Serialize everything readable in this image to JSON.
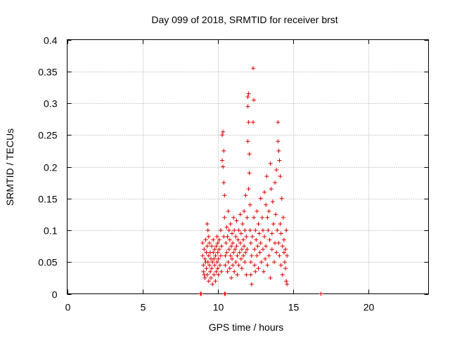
{
  "chart_data": {
    "type": "scatter",
    "title": "Day 099 of 2018, SRMTID for receiver brst",
    "xlabel": "GPS time / hours",
    "ylabel": "SRMTID / TECUs",
    "xlim": [
      0,
      24
    ],
    "ylim": [
      0,
      0.4
    ],
    "grid": true,
    "x_ticks": [
      0,
      5,
      10,
      15,
      20
    ],
    "x_tick_labels": [
      "0",
      "5",
      "10",
      "15",
      "20"
    ],
    "y_ticks": [
      0,
      0.05,
      0.1,
      0.15,
      0.2,
      0.25,
      0.3,
      0.35,
      0.4
    ],
    "y_tick_labels": [
      "0",
      "0.05",
      "0.1",
      "0.15",
      "0.2",
      "0.25",
      "0.3",
      "0.35",
      "0.4"
    ],
    "marker": "plus",
    "color": "#e00000",
    "series": [
      {
        "name": "SRMTID",
        "points": [
          [
            8.85,
            0.0
          ],
          [
            8.9,
            0.0
          ],
          [
            10.45,
            0.0
          ],
          [
            10.5,
            0.0
          ],
          [
            16.85,
            0.0
          ],
          [
            9.0,
            0.08
          ],
          [
            9.0,
            0.06
          ],
          [
            9.05,
            0.045
          ],
          [
            9.05,
            0.035
          ],
          [
            9.1,
            0.07
          ],
          [
            9.1,
            0.03
          ],
          [
            9.15,
            0.055
          ],
          [
            9.15,
            0.025
          ],
          [
            9.2,
            0.085
          ],
          [
            9.2,
            0.05
          ],
          [
            9.25,
            0.04
          ],
          [
            9.25,
            0.065
          ],
          [
            9.3,
            0.11
          ],
          [
            9.3,
            0.075
          ],
          [
            9.3,
            0.03
          ],
          [
            9.35,
            0.1
          ],
          [
            9.35,
            0.05
          ],
          [
            9.4,
            0.09
          ],
          [
            9.4,
            0.06
          ],
          [
            9.4,
            0.02
          ],
          [
            9.45,
            0.045
          ],
          [
            9.45,
            0.08
          ],
          [
            9.5,
            0.035
          ],
          [
            9.5,
            0.065
          ],
          [
            9.55,
            0.025
          ],
          [
            9.55,
            0.055
          ],
          [
            9.6,
            0.075
          ],
          [
            9.6,
            0.04
          ],
          [
            9.65,
            0.015
          ],
          [
            9.65,
            0.05
          ],
          [
            9.7,
            0.065
          ],
          [
            9.7,
            0.085
          ],
          [
            9.75,
            0.03
          ],
          [
            9.75,
            0.055
          ],
          [
            9.8,
            0.045
          ],
          [
            9.8,
            0.07
          ],
          [
            9.85,
            0.02
          ],
          [
            9.85,
            0.06
          ],
          [
            9.9,
            0.035
          ],
          [
            9.9,
            0.075
          ],
          [
            9.95,
            0.05
          ],
          [
            9.95,
            0.09
          ],
          [
            10.0,
            0.04
          ],
          [
            10.0,
            0.065
          ],
          [
            10.0,
            0.08
          ],
          [
            10.05,
            0.03
          ],
          [
            10.05,
            0.055
          ],
          [
            10.1,
            0.07
          ],
          [
            10.1,
            0.085
          ],
          [
            10.15,
            0.045
          ],
          [
            10.2,
            0.06
          ],
          [
            10.2,
            0.1
          ],
          [
            10.25,
            0.035
          ],
          [
            10.25,
            0.075
          ],
          [
            10.3,
            0.25
          ],
          [
            10.3,
            0.21
          ],
          [
            10.35,
            0.255
          ],
          [
            10.35,
            0.2
          ],
          [
            10.4,
            0.225
          ],
          [
            10.4,
            0.175
          ],
          [
            10.45,
            0.155
          ],
          [
            10.45,
            0.12
          ],
          [
            10.4,
            0.09
          ],
          [
            10.5,
            0.06
          ],
          [
            10.5,
            0.045
          ],
          [
            10.55,
            0.08
          ],
          [
            10.6,
            0.065
          ],
          [
            10.6,
            0.105
          ],
          [
            10.65,
            0.035
          ],
          [
            10.65,
            0.09
          ],
          [
            10.7,
            0.05
          ],
          [
            10.7,
            0.13
          ],
          [
            10.75,
            0.07
          ],
          [
            10.75,
            0.1
          ],
          [
            10.8,
            0.04
          ],
          [
            10.8,
            0.085
          ],
          [
            10.85,
            0.06
          ],
          [
            10.85,
            0.11
          ],
          [
            10.9,
            0.075
          ],
          [
            10.9,
            0.025
          ],
          [
            10.95,
            0.055
          ],
          [
            10.95,
            0.095
          ],
          [
            11.0,
            0.045
          ],
          [
            11.0,
            0.08
          ],
          [
            11.05,
            0.065
          ],
          [
            11.05,
            0.12
          ],
          [
            11.1,
            0.035
          ],
          [
            11.1,
            0.1
          ],
          [
            11.15,
            0.07
          ],
          [
            11.2,
            0.09
          ],
          [
            11.2,
            0.05
          ],
          [
            11.25,
            0.075
          ],
          [
            11.25,
            0.115
          ],
          [
            11.3,
            0.03
          ],
          [
            11.3,
            0.06
          ],
          [
            11.35,
            0.085
          ],
          [
            11.4,
            0.045
          ],
          [
            11.4,
            0.1
          ],
          [
            11.45,
            0.065
          ],
          [
            11.5,
            0.08
          ],
          [
            11.5,
            0.125
          ],
          [
            11.55,
            0.055
          ],
          [
            11.55,
            0.095
          ],
          [
            11.6,
            0.04
          ],
          [
            11.6,
            0.07
          ],
          [
            11.65,
            0.11
          ],
          [
            11.7,
            0.06
          ],
          [
            11.7,
            0.085
          ],
          [
            11.75,
            0.075
          ],
          [
            11.75,
            0.13
          ],
          [
            11.8,
            0.05
          ],
          [
            11.8,
            0.1
          ],
          [
            11.85,
            0.155
          ],
          [
            11.85,
            0.065
          ],
          [
            11.9,
            0.09
          ],
          [
            11.9,
            0.03
          ],
          [
            11.95,
            0.12
          ],
          [
            11.95,
            0.07
          ],
          [
            12.0,
            0.31
          ],
          [
            12.0,
            0.295
          ],
          [
            12.05,
            0.315
          ],
          [
            12.05,
            0.27
          ],
          [
            12.0,
            0.24
          ],
          [
            12.1,
            0.22
          ],
          [
            12.1,
            0.19
          ],
          [
            12.05,
            0.165
          ],
          [
            12.15,
            0.14
          ],
          [
            12.15,
            0.1
          ],
          [
            12.2,
            0.08
          ],
          [
            12.2,
            0.05
          ],
          [
            12.2,
            0.03
          ],
          [
            12.25,
            0.015
          ],
          [
            12.25,
            0.06
          ],
          [
            12.3,
            0.09
          ],
          [
            12.35,
            0.355
          ],
          [
            12.35,
            0.27
          ],
          [
            12.4,
            0.305
          ],
          [
            12.4,
            0.12
          ],
          [
            12.45,
            0.07
          ],
          [
            12.45,
            0.045
          ],
          [
            12.5,
            0.1
          ],
          [
            12.5,
            0.035
          ],
          [
            12.55,
            0.085
          ],
          [
            12.6,
            0.06
          ],
          [
            12.6,
            0.13
          ],
          [
            12.65,
            0.075
          ],
          [
            12.7,
            0.11
          ],
          [
            12.7,
            0.04
          ],
          [
            12.75,
            0.095
          ],
          [
            12.8,
            0.065
          ],
          [
            12.85,
            0.15
          ],
          [
            12.85,
            0.08
          ],
          [
            12.9,
            0.05
          ],
          [
            12.95,
            0.12
          ],
          [
            13.0,
            0.1
          ],
          [
            13.0,
            0.07
          ],
          [
            13.05,
            0.035
          ],
          [
            13.1,
            0.16
          ],
          [
            13.1,
            0.09
          ],
          [
            13.15,
            0.055
          ],
          [
            13.2,
            0.14
          ],
          [
            13.2,
            0.075
          ],
          [
            13.25,
            0.185
          ],
          [
            13.3,
            0.12
          ],
          [
            13.3,
            0.045
          ],
          [
            13.35,
            0.1
          ],
          [
            13.4,
            0.06
          ],
          [
            13.4,
            0.13
          ],
          [
            13.45,
            0.085
          ],
          [
            13.5,
            0.205
          ],
          [
            13.5,
            0.025
          ],
          [
            13.55,
            0.165
          ],
          [
            13.6,
            0.095
          ],
          [
            13.6,
            0.07
          ],
          [
            13.65,
            0.145
          ],
          [
            13.7,
            0.11
          ],
          [
            13.75,
            0.05
          ],
          [
            13.8,
            0.175
          ],
          [
            13.8,
            0.08
          ],
          [
            13.85,
            0.125
          ],
          [
            13.9,
            0.065
          ],
          [
            13.9,
            0.195
          ],
          [
            13.95,
            0.1
          ],
          [
            14.0,
            0.27
          ],
          [
            14.0,
            0.24
          ],
          [
            14.05,
            0.225
          ],
          [
            14.05,
            0.08
          ],
          [
            14.1,
            0.21
          ],
          [
            14.1,
            0.06
          ],
          [
            14.15,
            0.185
          ],
          [
            14.15,
            0.11
          ],
          [
            14.2,
            0.095
          ],
          [
            14.2,
            0.045
          ],
          [
            14.25,
            0.15
          ],
          [
            14.3,
            0.075
          ],
          [
            14.3,
            0.03
          ],
          [
            14.35,
            0.12
          ],
          [
            14.4,
            0.065
          ],
          [
            14.4,
            0.085
          ],
          [
            14.45,
            0.05
          ],
          [
            14.5,
            0.04
          ],
          [
            14.5,
            0.07
          ],
          [
            14.55,
            0.02
          ],
          [
            14.55,
            0.1
          ],
          [
            14.6,
            0.015
          ],
          [
            14.6,
            0.06
          ]
        ]
      }
    ]
  }
}
